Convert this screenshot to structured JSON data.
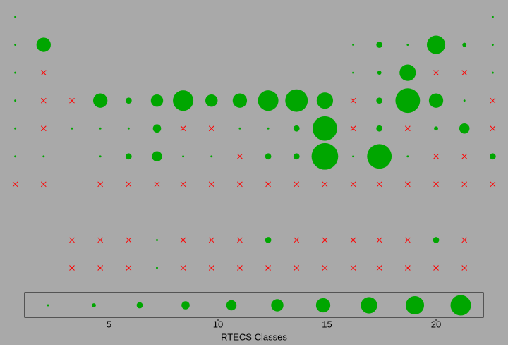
{
  "chart_data": {
    "type": "bubble",
    "xlabel": "RTECS Classes",
    "x": [
      0.7,
      2.0,
      3.3,
      4.6,
      5.9,
      7.2,
      8.4,
      9.7,
      11.0,
      12.3,
      13.6,
      14.9,
      16.2,
      17.4,
      18.7,
      20.0,
      21.3,
      22.6
    ],
    "y": [
      9,
      8,
      7,
      6,
      5,
      4,
      3,
      1,
      0
    ],
    "xlim": [
      0,
      23.3
    ],
    "ylim": [
      0,
      9
    ],
    "xticks": [
      5,
      10,
      15,
      20
    ],
    "color": "#00a600",
    "zero_color": "#ff0000",
    "background": "#a9a9a9",
    "values": [
      [
        1,
        null,
        null,
        null,
        null,
        null,
        null,
        null,
        null,
        null,
        null,
        null,
        null,
        null,
        null,
        null,
        null,
        1
      ],
      [
        1,
        7,
        null,
        null,
        null,
        null,
        null,
        null,
        null,
        null,
        null,
        null,
        1,
        3,
        1,
        9,
        2,
        1
      ],
      [
        1,
        0,
        null,
        null,
        null,
        null,
        null,
        null,
        null,
        null,
        null,
        null,
        1,
        2,
        8,
        0,
        0,
        1
      ],
      [
        1,
        0,
        0,
        7,
        3,
        6,
        10,
        6,
        7,
        10,
        11,
        8,
        0,
        3,
        12,
        7,
        1,
        0
      ],
      [
        1,
        0,
        1,
        1,
        1,
        4,
        0,
        0,
        1,
        1,
        3,
        12,
        0,
        3,
        0,
        2,
        5,
        0
      ],
      [
        1,
        1,
        null,
        1,
        3,
        5,
        1,
        1,
        0,
        3,
        3,
        13,
        1,
        12,
        1,
        0,
        0,
        3
      ],
      [
        0,
        0,
        null,
        0,
        0,
        0,
        0,
        0,
        0,
        0,
        0,
        0,
        0,
        0,
        0,
        0,
        0,
        0
      ],
      [
        null,
        null,
        0,
        0,
        0,
        1,
        0,
        0,
        0,
        3,
        0,
        0,
        0,
        0,
        0,
        3,
        0,
        null
      ],
      [
        null,
        null,
        0,
        0,
        0,
        1,
        0,
        0,
        0,
        0,
        0,
        0,
        0,
        0,
        0,
        0,
        0,
        null
      ]
    ],
    "legend_sizes": [
      1,
      2,
      3,
      4,
      5,
      6,
      7,
      8,
      9,
      10
    ]
  }
}
